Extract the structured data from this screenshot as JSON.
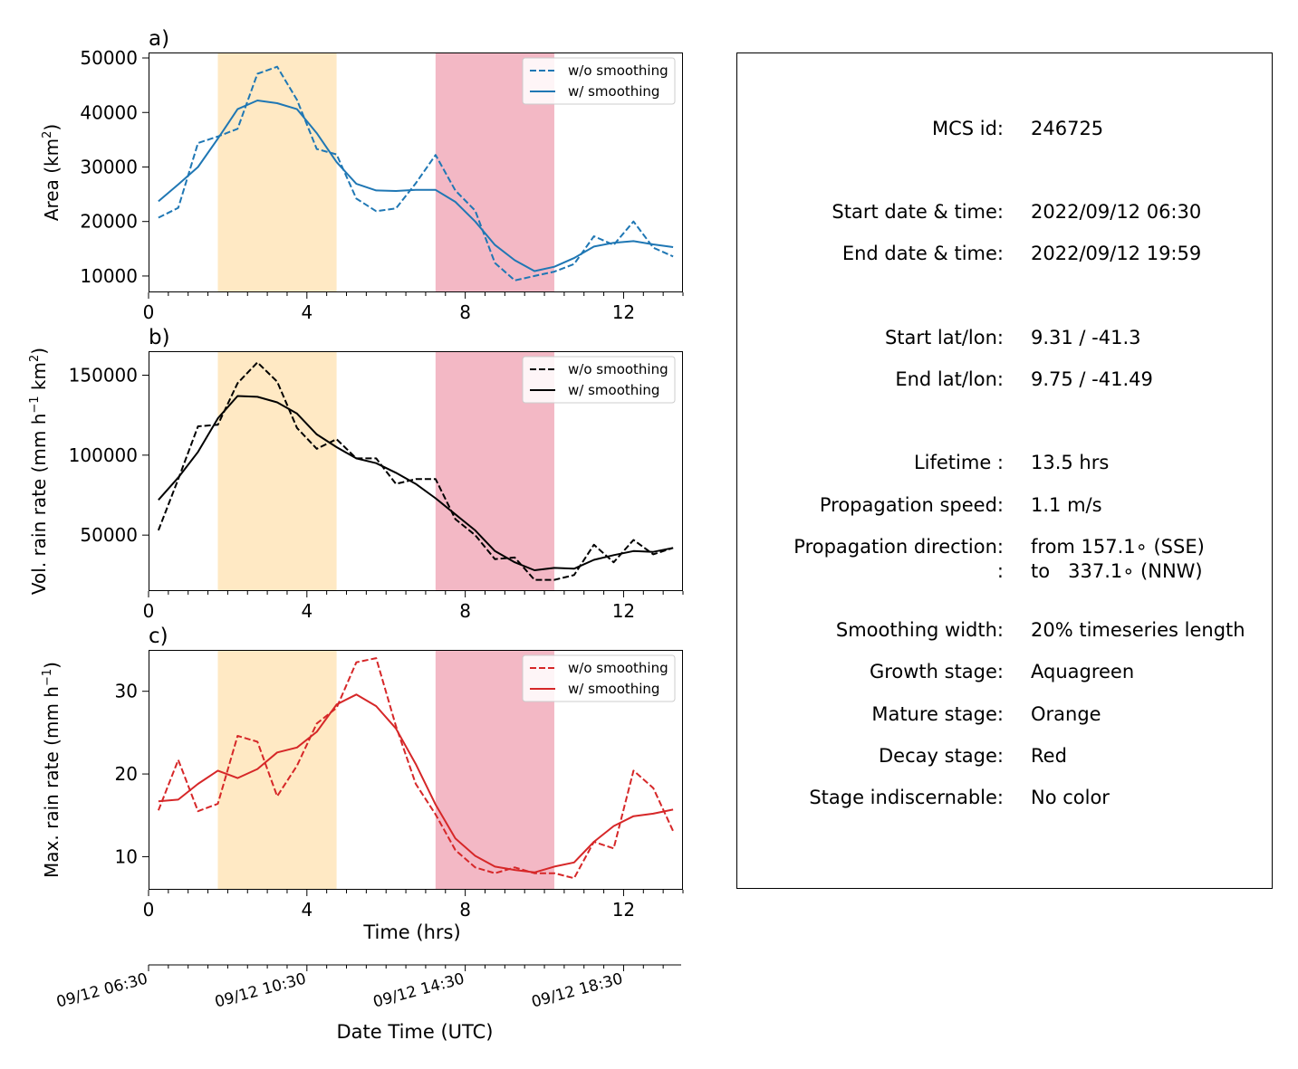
{
  "chart_data": [
    {
      "type": "line",
      "panel_label": "a)",
      "ylabel_text": "Area  (km",
      "ylabel_sup": "2",
      "ylabel_close": ")",
      "xlabel": "",
      "xlim": [
        0,
        13.5
      ],
      "ylim": [
        7000,
        51000
      ],
      "yticks": [
        10000,
        20000,
        30000,
        40000,
        50000
      ],
      "ytick_labels": [
        "10000",
        "20000",
        "30000",
        "40000",
        "50000"
      ],
      "xticks": [
        0,
        4,
        8,
        12
      ],
      "xtick_labels": [
        "0",
        "4",
        "8",
        "12"
      ],
      "color": "#1f77b4",
      "legend_position": "upper right",
      "shaded_stages": [
        {
          "start": 1.75,
          "end": 4.75,
          "color": "#ffe9c4"
        },
        {
          "start": 7.25,
          "end": 10.25,
          "color": "#f3b8c5"
        }
      ],
      "x": [
        0.25,
        0.75,
        1.25,
        1.75,
        2.25,
        2.75,
        3.25,
        3.75,
        4.25,
        4.75,
        5.25,
        5.75,
        6.25,
        6.75,
        7.25,
        7.75,
        8.25,
        8.75,
        9.25,
        9.75,
        10.25,
        10.75,
        11.25,
        11.75,
        12.25,
        12.75,
        13.25
      ],
      "series": [
        {
          "name": "w/o smoothing",
          "style": "dashed",
          "values": [
            20700,
            22500,
            34400,
            35600,
            37000,
            47100,
            48400,
            42300,
            33300,
            32300,
            24200,
            21900,
            22400,
            27000,
            32200,
            25700,
            22000,
            12400,
            9200,
            10000,
            10800,
            12200,
            17300,
            15700,
            20000,
            15200,
            13600
          ]
        },
        {
          "name": "w/ smoothing",
          "style": "solid",
          "values": [
            23700,
            26800,
            30000,
            35200,
            40600,
            42200,
            41700,
            40600,
            36200,
            30900,
            26900,
            25700,
            25600,
            25800,
            25800,
            23600,
            20000,
            15700,
            12900,
            10900,
            11700,
            13300,
            15400,
            16100,
            16400,
            15800,
            15300
          ]
        }
      ]
    },
    {
      "type": "line",
      "panel_label": "b)",
      "ylabel_text": "Vol. rain rate (mm h",
      "ylabel_sup": "−1",
      "ylabel_mid": " km",
      "ylabel_sup2": "2",
      "ylabel_close": ")",
      "xlabel": "",
      "xlim": [
        0,
        13.5
      ],
      "ylim": [
        15000,
        165000
      ],
      "yticks": [
        50000,
        100000,
        150000
      ],
      "ytick_labels": [
        "50000",
        "100000",
        "150000"
      ],
      "xticks": [
        0,
        4,
        8,
        12
      ],
      "xtick_labels": [
        "0",
        "4",
        "8",
        "12"
      ],
      "color": "#000000",
      "legend_position": "upper right",
      "shaded_stages": [
        {
          "start": 1.75,
          "end": 4.75,
          "color": "#ffe9c4"
        },
        {
          "start": 7.25,
          "end": 10.25,
          "color": "#f3b8c5"
        }
      ],
      "x": [
        0.25,
        0.75,
        1.25,
        1.75,
        2.25,
        2.75,
        3.25,
        3.75,
        4.25,
        4.75,
        5.25,
        5.75,
        6.25,
        6.75,
        7.25,
        7.75,
        8.25,
        8.75,
        9.25,
        9.75,
        10.25,
        10.75,
        11.25,
        11.75,
        12.25,
        12.75,
        13.25
      ],
      "series": [
        {
          "name": "w/o smoothing",
          "style": "dashed",
          "values": [
            53000,
            85000,
            118000,
            119000,
            145000,
            158000,
            146000,
            117000,
            104000,
            110000,
            98000,
            98000,
            82000,
            85000,
            85000,
            60000,
            50000,
            35000,
            36000,
            22000,
            22000,
            25000,
            44000,
            33000,
            47000,
            38000,
            42000
          ]
        },
        {
          "name": "w/ smoothing",
          "style": "solid",
          "values": [
            72000,
            86000,
            102000,
            123000,
            137000,
            136500,
            133000,
            126000,
            113000,
            105000,
            98000,
            95000,
            89000,
            82000,
            73000,
            63000,
            53000,
            40000,
            33000,
            28000,
            29500,
            29000,
            34500,
            37500,
            40000,
            39500,
            42000
          ]
        }
      ]
    },
    {
      "type": "line",
      "panel_label": "c)",
      "ylabel_text": "Max. rain rate  (mm h",
      "ylabel_sup": "−1",
      "ylabel_close": ")",
      "xlabel": "Time (hrs)",
      "xlim": [
        0,
        13.5
      ],
      "ylim": [
        6,
        35
      ],
      "yticks": [
        10,
        20,
        30
      ],
      "ytick_labels": [
        "10",
        "20",
        "30"
      ],
      "xticks": [
        0,
        4,
        8,
        12
      ],
      "xtick_labels": [
        "0",
        "4",
        "8",
        "12"
      ],
      "color": "#d62728",
      "legend_position": "upper right",
      "shaded_stages": [
        {
          "start": 1.75,
          "end": 4.75,
          "color": "#ffe9c4"
        },
        {
          "start": 7.25,
          "end": 10.25,
          "color": "#f3b8c5"
        }
      ],
      "x": [
        0.25,
        0.75,
        1.25,
        1.75,
        2.25,
        2.75,
        3.25,
        3.75,
        4.25,
        4.75,
        5.25,
        5.75,
        6.25,
        6.75,
        7.25,
        7.75,
        8.25,
        8.75,
        9.25,
        9.75,
        10.25,
        10.75,
        11.25,
        11.75,
        12.25,
        12.75,
        13.25
      ],
      "series": [
        {
          "name": "w/o smoothing",
          "style": "dashed",
          "values": [
            15.6,
            21.7,
            15.5,
            16.4,
            24.6,
            23.9,
            17.3,
            21.0,
            26.1,
            28.0,
            33.5,
            34.0,
            25.8,
            18.8,
            15.1,
            10.8,
            8.7,
            8.0,
            8.7,
            8.0,
            8.0,
            7.4,
            11.8,
            11.0,
            20.4,
            18.3,
            13.1
          ]
        },
        {
          "name": "w/ smoothing",
          "style": "solid",
          "values": [
            16.7,
            16.9,
            18.8,
            20.4,
            19.5,
            20.6,
            22.6,
            23.2,
            25.1,
            28.4,
            29.6,
            28.2,
            25.5,
            21.2,
            16.3,
            12.2,
            10.1,
            8.8,
            8.4,
            8.1,
            8.8,
            9.3,
            11.8,
            13.7,
            14.9,
            15.2,
            15.7
          ]
        }
      ]
    },
    {
      "type": "axis",
      "xlabel": "Date Time (UTC)",
      "xlim": [
        0,
        13.5
      ],
      "tick_labels": [
        {
          "t": 0,
          "label": "09/12 06:30"
        },
        {
          "t": 4,
          "label": "09/12 10:30"
        },
        {
          "t": 8,
          "label": "09/12 14:30"
        },
        {
          "t": 12,
          "label": "09/12 18:30"
        }
      ]
    }
  ],
  "info_panel": {
    "rows": [
      {
        "label": "MCS id:",
        "value": "246725"
      },
      {
        "label": "Start date & time:",
        "value": "2022/09/12 06:30"
      },
      {
        "label": "End date & time:",
        "value": "2022/09/12 19:59"
      },
      {
        "label": "Start lat/lon:",
        "value": "9.31 / -41.3"
      },
      {
        "label": "End lat/lon:",
        "value": "9.75 / -41.49"
      },
      {
        "label": "Lifetime :",
        "value": "13.5 hrs"
      },
      {
        "label": "Propagation speed:",
        "value": "1.1 m/s"
      },
      {
        "label": "Propagation direction:",
        "value": "from 157.1∘ (SSE)"
      },
      {
        "label": ":",
        "value": "to   337.1∘ (NNW)"
      },
      {
        "label": "Smoothing width:",
        "value": "20% timeseries length"
      },
      {
        "label": "Growth stage:",
        "value": "Aquagreen"
      },
      {
        "label": "Mature stage:",
        "value": "Orange"
      },
      {
        "label": "Decay stage:",
        "value": "Red"
      },
      {
        "label": "Stage indiscernable:",
        "value": "No color"
      }
    ]
  }
}
